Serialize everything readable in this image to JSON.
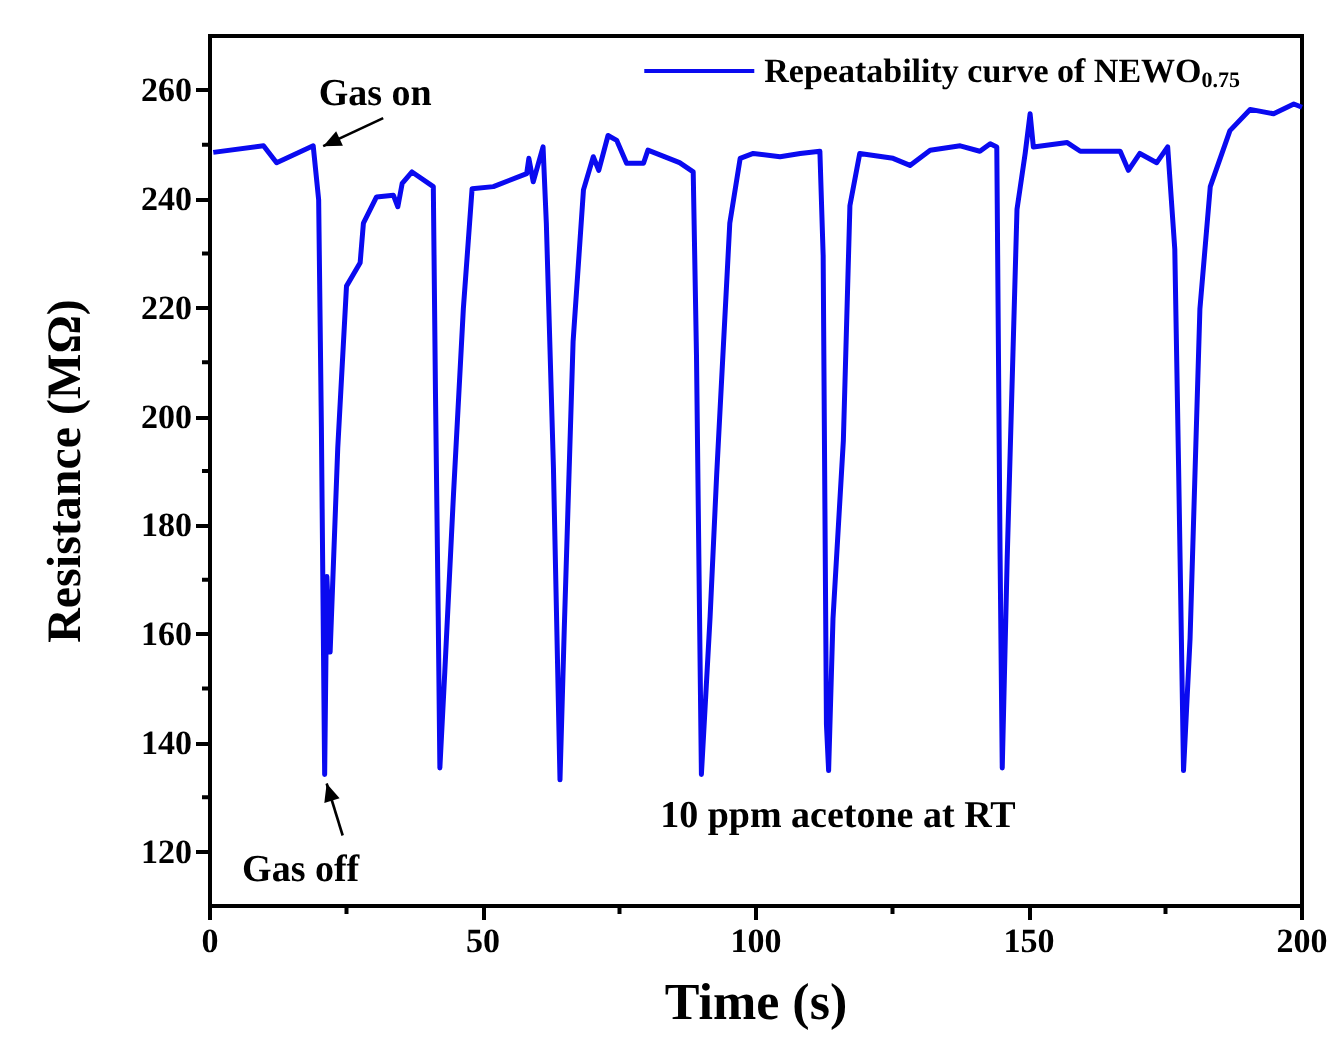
{
  "chart_data": {
    "type": "line",
    "xlabel": "Time (s)",
    "ylabel": "Resistance (MΩ)",
    "xlim": [
      0,
      200
    ],
    "xticks": [
      0,
      {
        "value": 25,
        "label": null
      },
      50,
      {
        "value": 75,
        "label": null
      },
      100,
      {
        "value": 125,
        "label": null
      },
      150,
      {
        "value": 175,
        "label": null
      },
      200
    ],
    "ylim": [
      110,
      270
    ],
    "yticks": [
      120,
      {
        "value": 130,
        "label": null
      },
      140,
      {
        "value": 150,
        "label": null
      },
      160,
      {
        "value": 170,
        "label": null
      },
      180,
      {
        "value": 190,
        "label": null
      },
      200,
      {
        "value": 210,
        "label": null
      },
      220,
      {
        "value": 230,
        "label": null
      },
      240,
      {
        "value": 250,
        "label": null
      },
      260
    ],
    "grid": false,
    "legend": "top right",
    "marker": "none",
    "line_style": "solid",
    "annotations": [
      {
        "text": "Gas on",
        "x": 20,
        "y": 249
      },
      {
        "text": "Gas off",
        "x": 21,
        "y": 134
      },
      "10 ppm acetone at RT"
    ],
    "series": [
      {
        "name": "Repeatability curve of NEWO$_{0.75}$",
        "color": "#0a0af0",
        "x": [
          0.6,
          9.8,
          12.2,
          18.9,
          19.9,
          20.4,
          21.0,
          21.4,
          22.0,
          23.4,
          25.0,
          27.5,
          28.1,
          30.5,
          33.6,
          34.4,
          35.2,
          37.0,
          40.9,
          41.3,
          41.8,
          42.1,
          43.0,
          44.6,
          46.4,
          48.0,
          51.9,
          58.0,
          58.4,
          59.2,
          61.0,
          61.6,
          62.9,
          64.1,
          64.9,
          66.5,
          68.4,
          70.2,
          71.2,
          72.9,
          74.5,
          76.3,
          79.4,
          80.2,
          86.0,
          88.5,
          89.1,
          90.0,
          91.6,
          92.8,
          95.2,
          97.1,
          99.5,
          104.4,
          108.1,
          111.7,
          112.3,
          112.9,
          113.3,
          114.1,
          116.0,
          117.2,
          119.0,
          125.1,
          128.2,
          131.9,
          137.4,
          141.0,
          142.9,
          144.1,
          144.7,
          145.1,
          146.0,
          147.8,
          149.3,
          150.2,
          150.8,
          157.0,
          159.4,
          166.7,
          168.2,
          170.3,
          173.4,
          175.4,
          176.7,
          177.4,
          178.3,
          179.5,
          181.3,
          183.2,
          186.8,
          190.5,
          194.8,
          198.5,
          200
        ],
        "values": [
          248.6,
          249.8,
          246.7,
          249.8,
          239.9,
          198,
          134.2,
          170.6,
          156.7,
          194.3,
          224,
          228.3,
          235.6,
          240.4,
          240.7,
          238.6,
          242.9,
          245,
          242.3,
          204,
          163.3,
          135.4,
          153,
          185.8,
          219.8,
          241.9,
          242.3,
          244.7,
          247.5,
          243.2,
          249.6,
          235.6,
          190.6,
          133.2,
          161.5,
          213.8,
          241.7,
          247.8,
          245.3,
          251.7,
          250.8,
          246.6,
          246.6,
          249,
          246.7,
          245,
          211.3,
          134.2,
          163.3,
          189.4,
          235.6,
          247.5,
          248.4,
          247.8,
          248.4,
          248.8,
          229.6,
          143.4,
          134.9,
          162.8,
          195.6,
          238.8,
          248.4,
          247.5,
          246.2,
          249,
          249.8,
          248.8,
          250.2,
          249.6,
          174.9,
          135.4,
          173.7,
          238.1,
          248.4,
          255.7,
          249.6,
          250.4,
          248.8,
          248.8,
          245.3,
          248.4,
          246.7,
          249.6,
          230.8,
          190.6,
          134.9,
          159.2,
          219.8,
          242.3,
          252.6,
          256.5,
          255.7,
          257.5,
          256.9
        ]
      }
    ]
  }
}
